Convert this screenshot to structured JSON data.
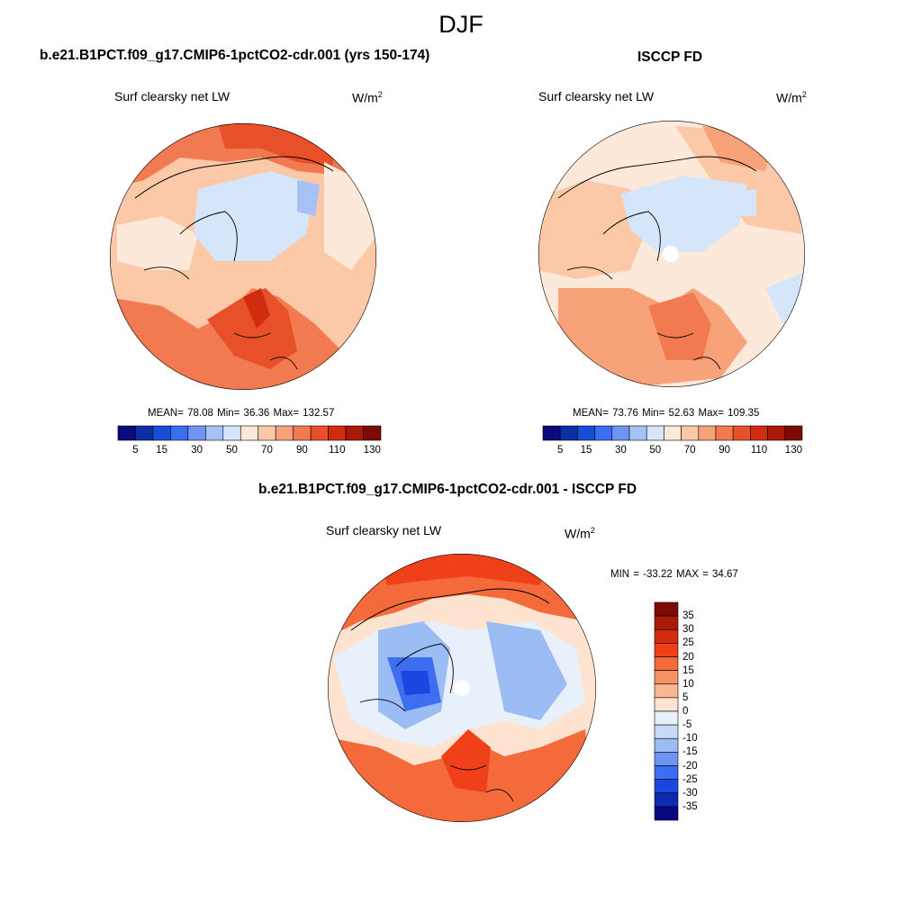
{
  "figure": {
    "season": "DJF",
    "units_prefix": "W/m",
    "units_exp": "2"
  },
  "panels": [
    {
      "title": "b.e21.B1PCT.f09_g17.CMIP6-1pctCO2-cdr.001 (yrs 150-174)",
      "variable": "Surf clearsky net LW",
      "stats": "MEAN=  78.08  Min=  36.36  Max= 132.57"
    },
    {
      "title": "ISCCP FD",
      "variable": "Surf clearsky net LW",
      "stats": "MEAN=  73.76  Min=  52.63  Max= 109.35"
    },
    {
      "title": "b.e21.B1PCT.f09_g17.CMIP6-1pctCO2-cdr.001 - ISCCP FD",
      "variable": "Surf clearsky net LW",
      "stats": "MIN = -33.22 MAX =  34.67"
    }
  ],
  "colorbar_main": {
    "colors": [
      "#0a0a7a",
      "#0c2fa8",
      "#1a4dd6",
      "#3a6ef0",
      "#6f95f4",
      "#a6c1f6",
      "#d6e6fa",
      "#fde9d9",
      "#fbc8a8",
      "#f8a27a",
      "#f27a50",
      "#e8502a",
      "#d22c10",
      "#ab1a08",
      "#7d0b04"
    ],
    "tick_labels": [
      "5",
      "15",
      "30",
      "50",
      "70",
      "90",
      "110",
      "130"
    ],
    "tick_after_box": [
      1,
      3,
      5,
      7,
      9,
      11,
      13,
      15
    ]
  },
  "colorbar_diff": {
    "colors": [
      "#7d0b04",
      "#ab1a08",
      "#d22c10",
      "#f0401a",
      "#f46a3a",
      "#f79266",
      "#fab796",
      "#fde3d0",
      "#e8f1fb",
      "#c7daf7",
      "#9cbcf4",
      "#6f95f4",
      "#3d6ef2",
      "#1b47e0",
      "#0e2bb0",
      "#080880"
    ],
    "tick_labels": [
      "35",
      "30",
      "25",
      "20",
      "15",
      "10",
      "5",
      "0",
      "-5",
      "-10",
      "-15",
      "-20",
      "-25",
      "-30",
      "-35"
    ]
  },
  "chart_data": [
    {
      "type": "heatmap",
      "projection": "north polar stereographic",
      "title": "b.e21.B1PCT.f09_g17.CMIP6-1pctCO2-cdr.001 (yrs 150-174)",
      "variable": "Surf clearsky net LW",
      "units": "W/m2",
      "levels": [
        5,
        10,
        15,
        20,
        30,
        40,
        50,
        60,
        70,
        80,
        90,
        100,
        110,
        120,
        130
      ],
      "stats": {
        "mean": 78.08,
        "min": 36.36,
        "max": 132.57
      }
    },
    {
      "type": "heatmap",
      "projection": "north polar stereographic",
      "title": "ISCCP FD",
      "variable": "Surf clearsky net LW",
      "units": "W/m2",
      "levels": [
        5,
        10,
        15,
        20,
        30,
        40,
        50,
        60,
        70,
        80,
        90,
        100,
        110,
        120,
        130
      ],
      "stats": {
        "mean": 73.76,
        "min": 52.63,
        "max": 109.35
      }
    },
    {
      "type": "heatmap",
      "projection": "north polar stereographic",
      "title": "b.e21.B1PCT.f09_g17.CMIP6-1pctCO2-cdr.001 - ISCCP FD",
      "variable": "Surf clearsky net LW",
      "units": "W/m2",
      "levels": [
        -35,
        -30,
        -25,
        -20,
        -15,
        -10,
        -5,
        0,
        5,
        10,
        15,
        20,
        25,
        30,
        35
      ],
      "stats": {
        "min": -33.22,
        "max": 34.67
      }
    }
  ]
}
